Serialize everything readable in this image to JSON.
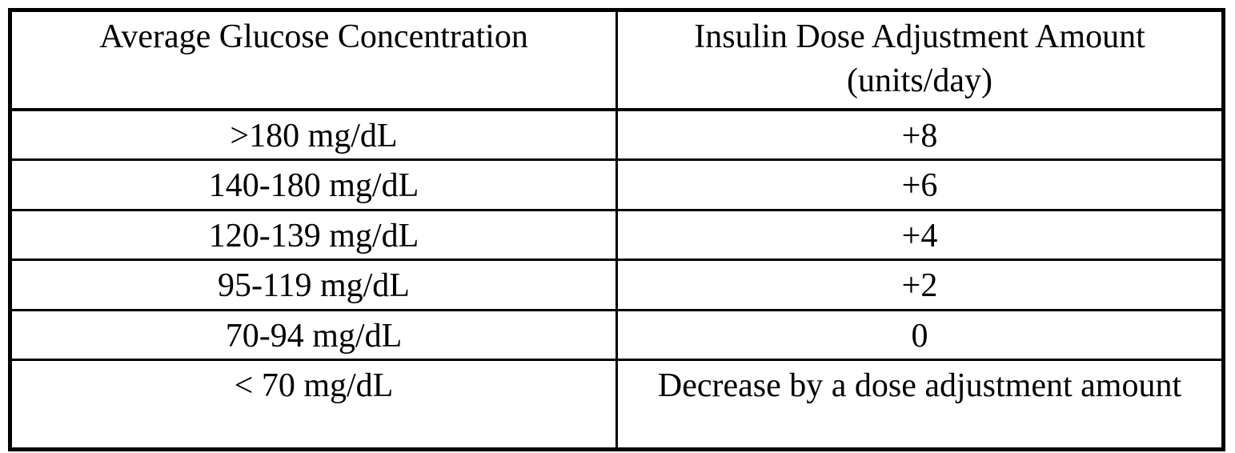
{
  "page": {
    "background": "#ffffff"
  },
  "table": {
    "style": {
      "border_color": "#000000",
      "text_color": "#000000",
      "background": "#ffffff"
    },
    "header": {
      "glucose_column": "Average Glucose Concentration",
      "dose_column_line1": "Insulin Dose Adjustment Amount",
      "dose_column_line2": "(units/day)"
    },
    "rows": [
      {
        "glucose": ">180 mg/dL",
        "adjustment": "+8"
      },
      {
        "glucose": "140-180 mg/dL",
        "adjustment": "+6"
      },
      {
        "glucose": "120-139 mg/dL",
        "adjustment": "+4"
      },
      {
        "glucose": "95-119 mg/dL",
        "adjustment": "+2"
      },
      {
        "glucose": "70-94 mg/dL",
        "adjustment": "0"
      },
      {
        "glucose": "< 70 mg/dL",
        "adjustment": "Decrease by a dose adjustment amount"
      }
    ]
  }
}
